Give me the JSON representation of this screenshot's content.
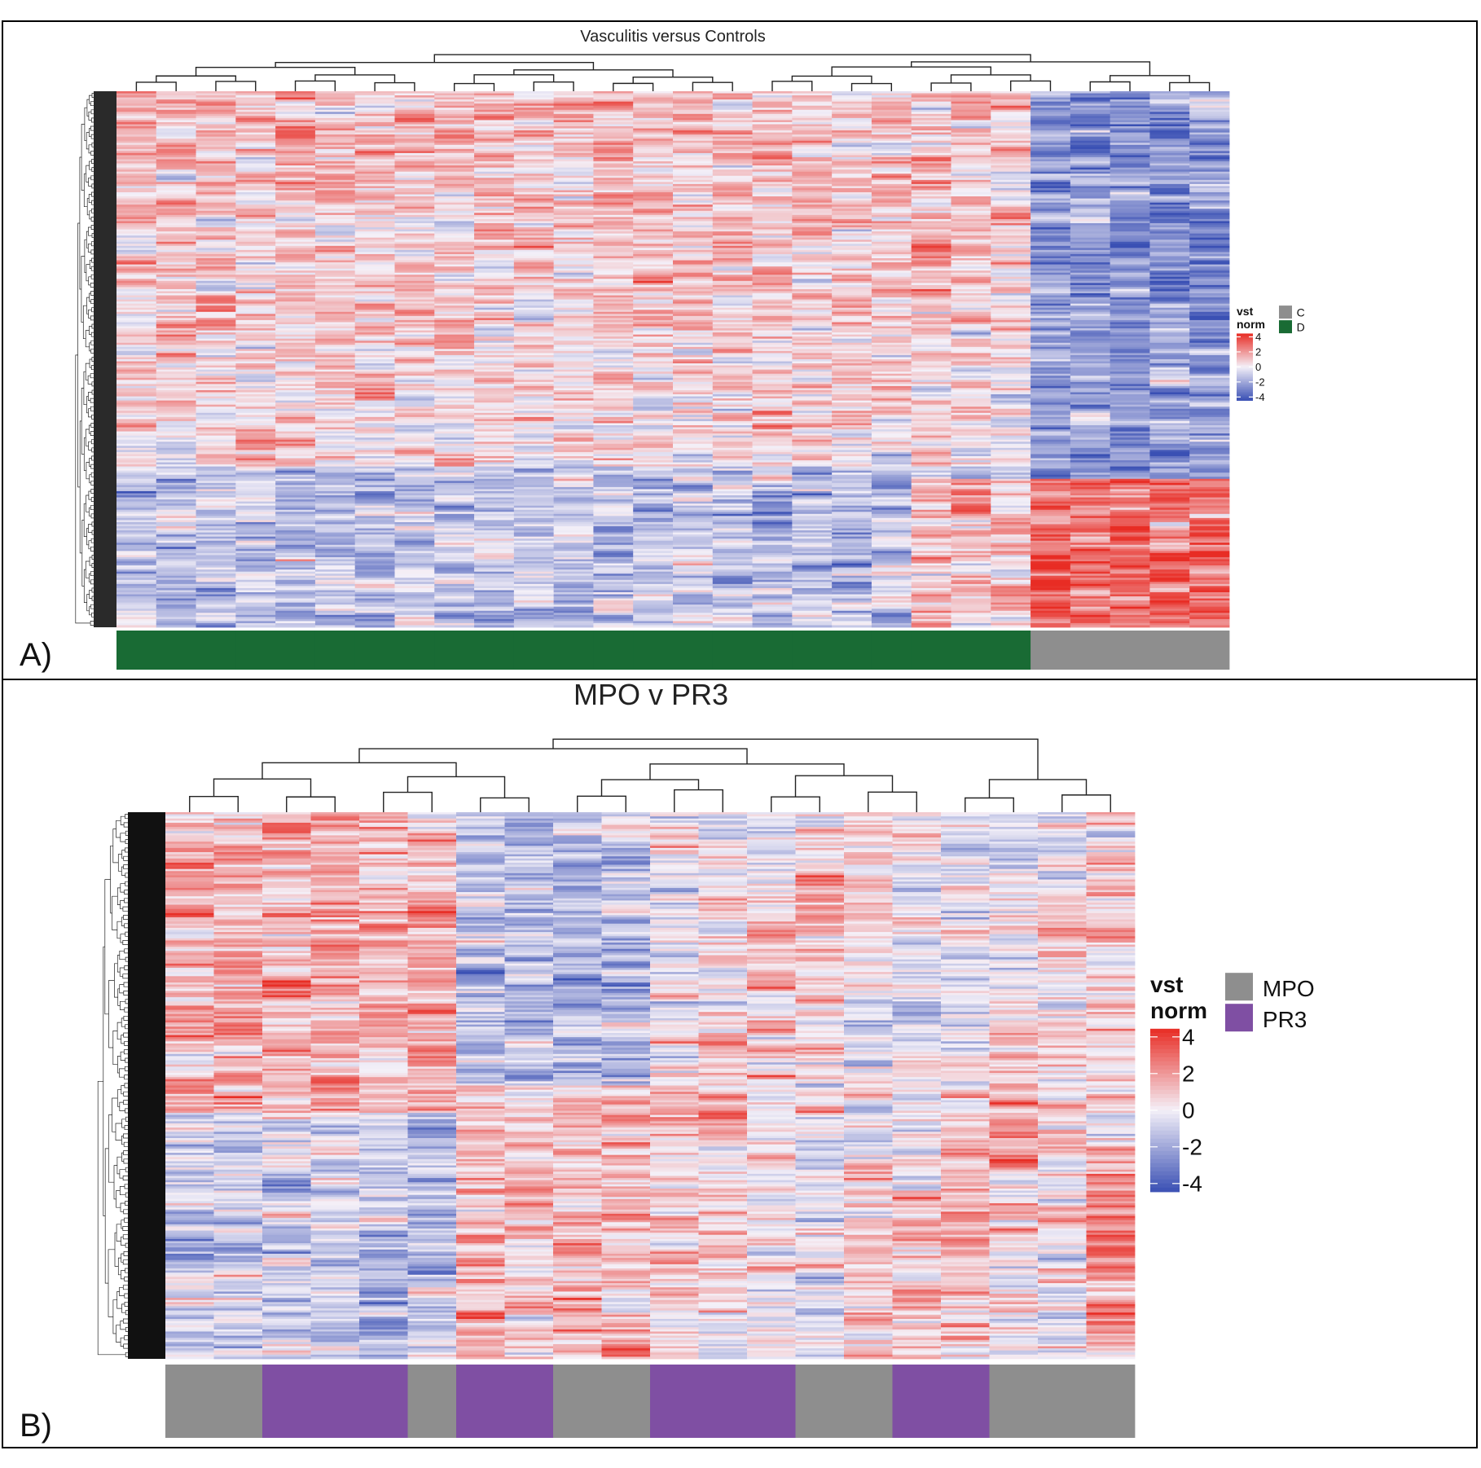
{
  "chart_data": [
    {
      "panel_label": "A)",
      "type": "heatmap",
      "title": "Vasculitis versus Controls",
      "color_scale": {
        "title_line1": "vst",
        "title_line2": "norm",
        "ticks": [
          "4",
          "2",
          "0",
          "-2",
          "-4"
        ],
        "range": [
          -4,
          4
        ],
        "colors": {
          "low": "#3a50b4",
          "mid": "#f4f0f8",
          "high": "#e82c24"
        }
      },
      "annotation_legend": [
        {
          "label": "C",
          "color": "#8e8e8e"
        },
        {
          "label": "D",
          "color": "#196b34"
        }
      ],
      "columns": 28,
      "column_groups": [
        "D",
        "D",
        "D",
        "D",
        "D",
        "D",
        "D",
        "D",
        "D",
        "D",
        "D",
        "D",
        "D",
        "D",
        "D",
        "D",
        "D",
        "D",
        "D",
        "D",
        "D",
        "D",
        "D",
        "C",
        "C",
        "C",
        "C",
        "C"
      ],
      "pattern": "D columns mostly red (positive) in upper ~70% of rows and blue (negative) in lower rows; C columns strongly blue in upper rows and red in lower ~30% of rows"
    },
    {
      "panel_label": "B)",
      "type": "heatmap",
      "title": "MPO v PR3",
      "color_scale": {
        "title_line1": "vst",
        "title_line2": "norm",
        "ticks": [
          "4",
          "2",
          "0",
          "-2",
          "-4"
        ],
        "range": [
          -4,
          4
        ],
        "colors": {
          "low": "#3a50b4",
          "mid": "#f4f0f8",
          "high": "#e82c24"
        }
      },
      "annotation_legend": [
        {
          "label": "MPO",
          "color": "#8e8e8e"
        },
        {
          "label": "PR3",
          "color": "#7f4fa3"
        }
      ],
      "columns": 20,
      "column_groups": [
        "MPO",
        "MPO",
        "PR3",
        "PR3",
        "PR3",
        "MPO",
        "PR3",
        "PR3",
        "MPO",
        "MPO",
        "PR3",
        "PR3",
        "PR3",
        "MPO",
        "MPO",
        "PR3",
        "PR3",
        "MPO",
        "MPO",
        "MPO"
      ],
      "pattern": "First six columns mostly red in upper rows and blue in lower rows; remaining columns mixed with blue upper and red lower regions"
    }
  ]
}
